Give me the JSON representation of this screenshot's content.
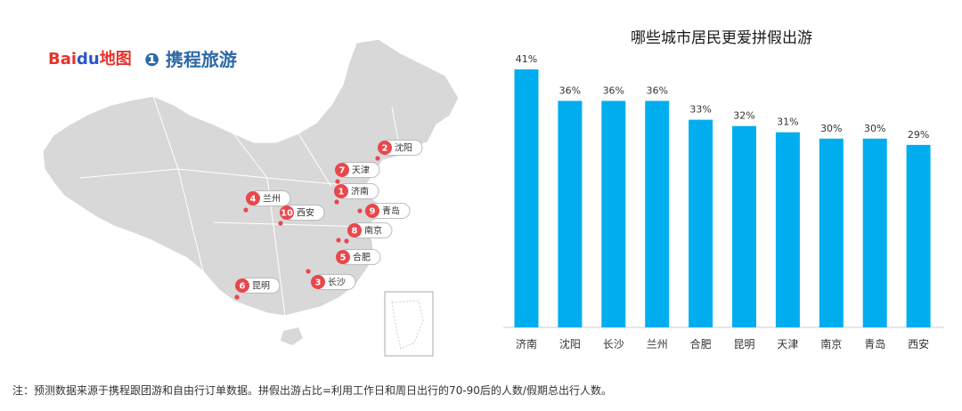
{
  "logos": {
    "baidu_text": "Bai",
    "baidu_du": "du",
    "baidu_map": "地图",
    "ctrip": "携程旅游"
  },
  "map_pins": [
    {
      "rank": "1",
      "city": "济南"
    },
    {
      "rank": "2",
      "city": "沈阳"
    },
    {
      "rank": "3",
      "city": "长沙"
    },
    {
      "rank": "4",
      "city": "兰州"
    },
    {
      "rank": "5",
      "city": "合肥"
    },
    {
      "rank": "6",
      "city": "昆明"
    },
    {
      "rank": "7",
      "city": "天津"
    },
    {
      "rank": "8",
      "city": "南京"
    },
    {
      "rank": "9",
      "city": "青岛"
    },
    {
      "rank": "10",
      "city": "西安"
    }
  ],
  "chart_data": {
    "type": "bar",
    "title": "哪些城市居民更爱拼假出游",
    "categories": [
      "济南",
      "沈阳",
      "长沙",
      "兰州",
      "合肥",
      "昆明",
      "天津",
      "南京",
      "青岛",
      "西安"
    ],
    "values": [
      41,
      36,
      36,
      36,
      33,
      32,
      31,
      30,
      30,
      29
    ],
    "value_labels": [
      "41%",
      "36%",
      "36%",
      "36%",
      "33%",
      "32%",
      "31%",
      "30%",
      "30%",
      "29%"
    ],
    "ylim": [
      0,
      45
    ],
    "bar_color": "#00aeef",
    "grid": false,
    "legend": "none"
  },
  "footnote": "注：预测数据来源于携程跟团游和自由行订单数据。拼假出游占比=利用工作日和周日出行的70-90后的人数/假期总出行人数。",
  "colors": {
    "pin": "#e8474c",
    "map_fill": "#d8d8d8",
    "map_border": "#ffffff"
  }
}
